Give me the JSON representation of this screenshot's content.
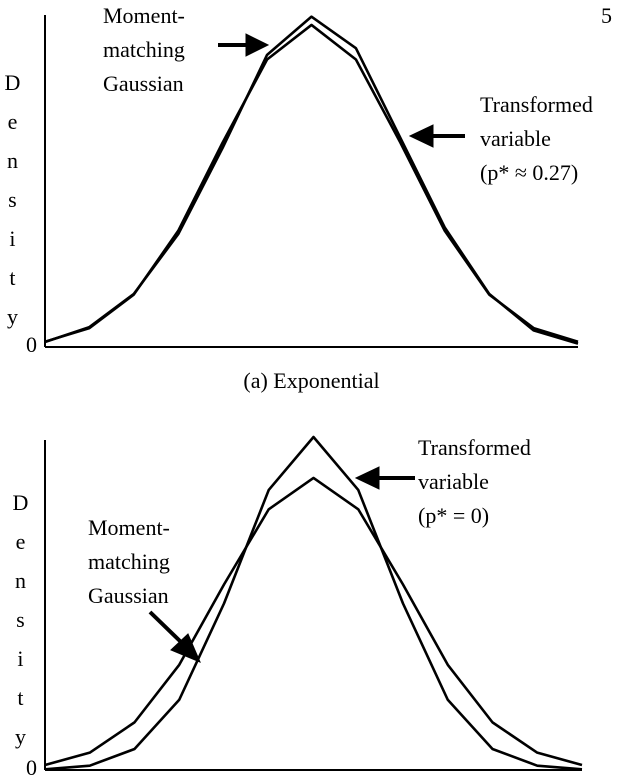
{
  "page_number": "5",
  "chart_data": [
    {
      "type": "line",
      "y_label": "Density",
      "caption": "(a) Exponential",
      "x": [
        -3,
        -2.5,
        -2,
        -1.5,
        -1,
        -0.5,
        0,
        0.5,
        1,
        1.5,
        2,
        2.5,
        3
      ],
      "xlim": [
        -3,
        3
      ],
      "ylim": [
        0,
        1
      ],
      "yticks": [
        0
      ],
      "series": [
        {
          "name": "Moment-matching Gaussian",
          "color": "#000000",
          "values": [
            0.016,
            0.057,
            0.158,
            0.35,
            0.616,
            0.866,
            0.97,
            0.866,
            0.616,
            0.35,
            0.158,
            0.057,
            0.016
          ]
        },
        {
          "name": "Transformed variable",
          "color": "#000000",
          "values": [
            0.015,
            0.06,
            0.16,
            0.34,
            0.6,
            0.88,
            0.995,
            0.9,
            0.63,
            0.36,
            0.16,
            0.05,
            0.01
          ]
        }
      ],
      "annotations": [
        {
          "lines": [
            "Moment-",
            "matching",
            "Gaussian"
          ]
        },
        {
          "lines": [
            "Transformed",
            "variable",
            "(p* ≈ 0.27)"
          ]
        }
      ]
    },
    {
      "type": "line",
      "y_label": "Density",
      "x": [
        -3,
        -2.5,
        -2,
        -1.5,
        -1,
        -0.5,
        0,
        0.5,
        1,
        1.5,
        2,
        2.5,
        3
      ],
      "xlim": [
        -3,
        3
      ],
      "ylim": [
        0,
        1
      ],
      "yticks": [
        0
      ],
      "series": [
        {
          "name": "Moment-matching Gaussian",
          "color": "#000000",
          "values": [
            0.015,
            0.052,
            0.143,
            0.316,
            0.557,
            0.783,
            0.877,
            0.783,
            0.557,
            0.316,
            0.143,
            0.052,
            0.015
          ]
        },
        {
          "name": "Transformed variable",
          "color": "#000000",
          "values": [
            0.002,
            0.013,
            0.063,
            0.211,
            0.5,
            0.841,
            1.0,
            0.841,
            0.5,
            0.211,
            0.063,
            0.013,
            0.002
          ]
        }
      ],
      "annotations": [
        {
          "lines": [
            "Transformed",
            "variable",
            "(p* = 0)"
          ]
        },
        {
          "lines": [
            "Moment-",
            "matching",
            "Gaussian"
          ]
        }
      ]
    }
  ]
}
